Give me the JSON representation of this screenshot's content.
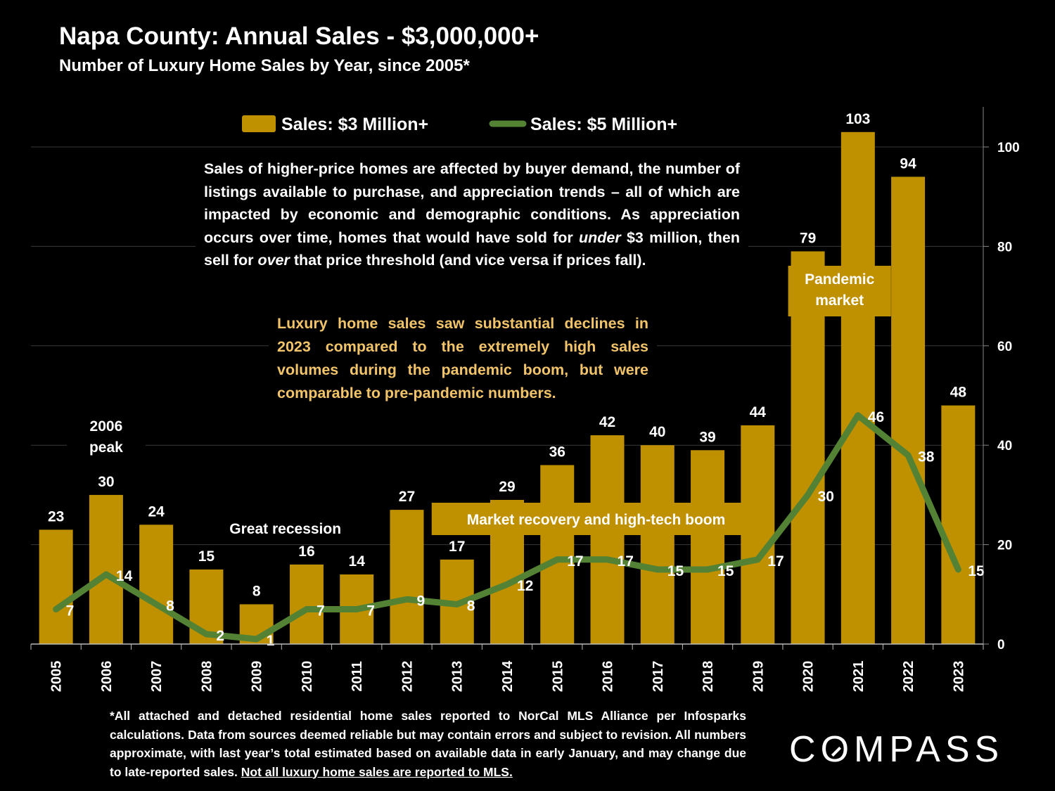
{
  "title": "Napa County:  Annual Sales - $3,000,000+",
  "subtitle": "Number of Luxury Home Sales by Year, since 2005*",
  "colors": {
    "bar": "#bf9000",
    "line": "#548235",
    "highlight_text": "#f2c46a",
    "background": "#000000"
  },
  "description": {
    "part1": "Sales of higher-price homes are affected by buyer demand, the number of listings available to purchase, and appreciation trends – all of which are impacted by economic and demographic conditions. As appreciation occurs over time, homes that would have sold for ",
    "em1": "under",
    "part2": " $3 million, then sell for ",
    "em2": "over",
    "part3": " that price threshold (and vice versa if prices fall)."
  },
  "highlight_text": "Luxury home sales saw substantial declines in 2023 compared to the extremely high sales volumes during the pandemic boom, but were comparable to pre-pandemic numbers.",
  "footnote": {
    "text": "*All attached and detached residential home sales reported to NorCal MLS Alliance per Infosparks calculations. Data from sources deemed reliable but may contain errors and subject to revision. All numbers approximate, with last year’s total estimated based on available data in early January, and may change due to late-reported sales. ",
    "underlined": "Not all luxury home sales are reported to MLS."
  },
  "logo": {
    "left": "C",
    "o": "O",
    "right": "MPASS"
  },
  "chart_data": {
    "type": "bar",
    "categories": [
      "2005",
      "2006",
      "2007",
      "2008",
      "2009",
      "2010",
      "2011",
      "2012",
      "2013",
      "2014",
      "2015",
      "2016",
      "2017",
      "2018",
      "2019",
      "2020",
      "2021",
      "2022",
      "2023"
    ],
    "series": [
      {
        "name": "Sales: $3 Million+",
        "kind": "bar",
        "values": [
          23,
          30,
          24,
          15,
          8,
          16,
          14,
          27,
          17,
          29,
          36,
          42,
          40,
          39,
          44,
          79,
          103,
          94,
          48
        ]
      },
      {
        "name": "Sales:  $5 Million+",
        "kind": "line",
        "values": [
          7,
          14,
          8,
          2,
          1,
          7,
          7,
          9,
          8,
          12,
          17,
          17,
          15,
          15,
          17,
          30,
          46,
          38,
          15
        ]
      }
    ],
    "ylim": [
      0,
      108
    ],
    "yticks": [
      0,
      20,
      40,
      60,
      80,
      100
    ],
    "y_axis_side": "right",
    "legend_position": "top-center",
    "annotations": [
      {
        "text": "2006 peak",
        "year": "2006",
        "lines": [
          "2006",
          "peak"
        ]
      },
      {
        "text": "Great recession",
        "year": "2009",
        "lines": [
          "Great recession"
        ]
      },
      {
        "text": "Market recovery and high-tech boom",
        "span": [
          "2013",
          "2019"
        ],
        "lines": [
          "Market recovery and high-tech boom"
        ]
      },
      {
        "text": "Pandemic market",
        "span": [
          "2020",
          "2021"
        ],
        "lines": [
          "Pandemic",
          "market"
        ]
      }
    ]
  }
}
